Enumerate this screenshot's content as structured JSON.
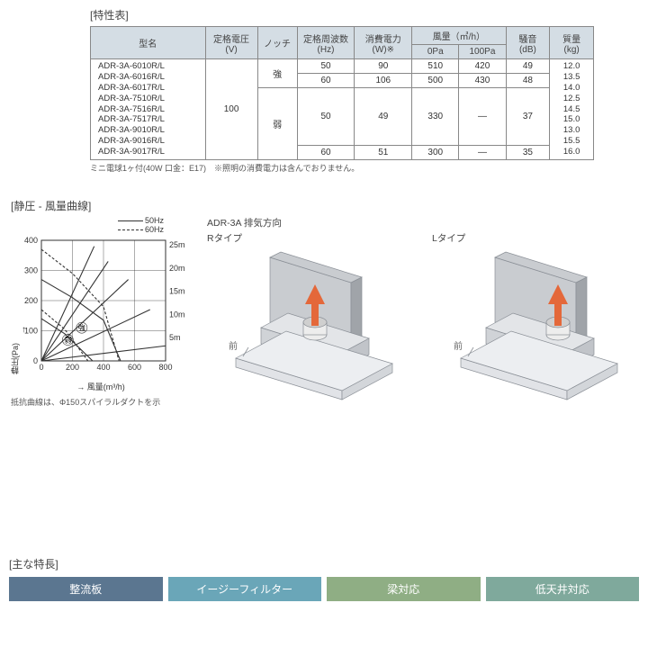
{
  "spec": {
    "title": "[特性表]",
    "headers": {
      "model": "型名",
      "voltage": "定格電圧\n(V)",
      "notch": "ノッチ",
      "freq": "定格周波数\n(Hz)",
      "power": "消費電力\n(W)※",
      "airflow": "風量（㎥/h）",
      "air0": "0Pa",
      "air100": "100Pa",
      "noise": "騒音\n(dB)",
      "mass": "質量\n(kg)"
    },
    "models": [
      "ADR-3A-6010R/L",
      "ADR-3A-6016R/L",
      "ADR-3A-6017R/L",
      "ADR-3A-7510R/L",
      "ADR-3A-7516R/L",
      "ADR-3A-7517R/L",
      "ADR-3A-9010R/L",
      "ADR-3A-9016R/L",
      "ADR-3A-9017R/L"
    ],
    "voltage": "100",
    "notch_strong": "強",
    "notch_weak": "弱",
    "rows": [
      {
        "freq": "50",
        "power": "90",
        "a0": "510",
        "a100": "420",
        "db": "49"
      },
      {
        "freq": "60",
        "power": "106",
        "a0": "500",
        "a100": "430",
        "db": "48"
      },
      {
        "freq": "50",
        "power": "49",
        "a0": "330",
        "a100": "—",
        "db": "37"
      },
      {
        "freq": "60",
        "power": "51",
        "a0": "300",
        "a100": "—",
        "db": "35"
      }
    ],
    "masses": [
      "12.0",
      "13.5",
      "14.0",
      "12.5",
      "14.5",
      "15.0",
      "13.0",
      "15.5",
      "16.0"
    ],
    "footnote": "ミニ電球1ヶ付(40W 口金：E17)　※照明の消費電力は含んでおりません。"
  },
  "chart": {
    "title": "[静圧 - 風量曲線]",
    "legend50": "50Hz",
    "legend60": "60Hz",
    "ylabel": "静圧(Pa)",
    "xlabel": "風量(m³/h)",
    "xticks": [
      "0",
      "200",
      "400",
      "600",
      "800"
    ],
    "yticks": [
      "0",
      "100",
      "200",
      "300",
      "400"
    ],
    "right_ticks": [
      "5m",
      "10m",
      "15m",
      "20m",
      "25m"
    ],
    "note": "抵抗曲線は、Φ150スパイラルダクトを示",
    "grid_color": "#333",
    "bg": "#ffffff",
    "curve_color": "#333",
    "font_size": 9,
    "xlim": [
      0,
      800
    ],
    "ylim": [
      0,
      400
    ],
    "annot_strong": "強",
    "annot_weak": "弱",
    "arrow_glyph": "↑",
    "arrow_x": "→",
    "series": {
      "strong_50": [
        [
          0,
          270
        ],
        [
          200,
          210
        ],
        [
          400,
          135
        ],
        [
          510,
          0
        ]
      ],
      "strong_60": [
        [
          0,
          370
        ],
        [
          200,
          290
        ],
        [
          400,
          180
        ],
        [
          500,
          0
        ]
      ],
      "weak_50": [
        [
          0,
          140
        ],
        [
          150,
          90
        ],
        [
          330,
          0
        ]
      ],
      "weak_60": [
        [
          0,
          170
        ],
        [
          150,
          105
        ],
        [
          300,
          0
        ]
      ],
      "duct5": [
        [
          0,
          0
        ],
        [
          800,
          50
        ]
      ],
      "duct10": [
        [
          0,
          0
        ],
        [
          700,
          170
        ]
      ],
      "duct15": [
        [
          0,
          0
        ],
        [
          560,
          270
        ]
      ],
      "duct20": [
        [
          0,
          0
        ],
        [
          430,
          330
        ]
      ],
      "duct25": [
        [
          0,
          0
        ],
        [
          340,
          380
        ]
      ]
    }
  },
  "iso": {
    "title": "ADR-3A 排気方向",
    "r_label": "Rタイプ",
    "l_label": "Lタイプ",
    "front": "前",
    "colors": {
      "wall": "#c9ccd0",
      "wall_dark": "#a0a4a9",
      "hood_top": "#e3e5e8",
      "hood_side": "#c1c4c9",
      "hood_front": "#d0d3d7",
      "base_top": "#eceef1",
      "base_side": "#d3d6da",
      "base_front": "#e1e3e7",
      "duct": "#ededed",
      "duct_shade": "#cfcfcf",
      "arrow": "#e4683a",
      "outline": "#8a8f96"
    }
  },
  "features": {
    "title": "[主な特長]",
    "items": [
      {
        "label": "整流板",
        "color": "#5b7690"
      },
      {
        "label": "イージーフィルター",
        "color": "#6aa6b8"
      },
      {
        "label": "梁対応",
        "color": "#8fae84"
      },
      {
        "label": "低天井対応",
        "color": "#7fa99c"
      }
    ]
  }
}
